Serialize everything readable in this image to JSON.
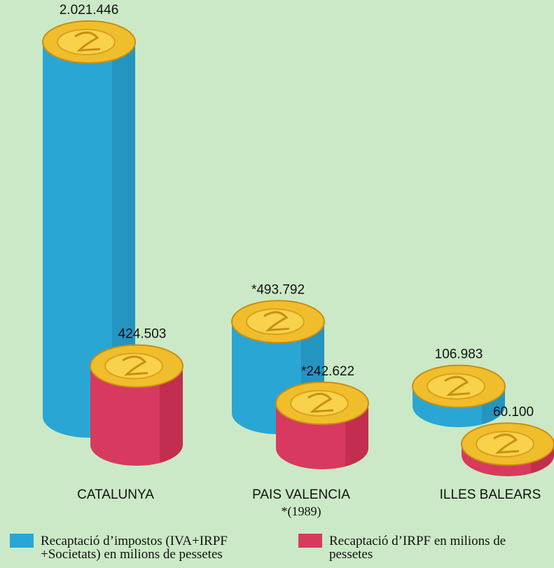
{
  "chart_data": {
    "type": "cylinder-bar",
    "categories": [
      "CATALUNYA",
      "PAIS VALENCIA",
      "ILLES BALEARS"
    ],
    "footnote": "*(1989)",
    "series": [
      {
        "name": "Recaptació d’impostos (IVA+IRPF +Societats) en milions de pessetes",
        "color": "#2aa6d4",
        "values": [
          2021446,
          493792,
          106983
        ],
        "value_labels": [
          "2.021.446",
          "*493.792",
          "106.983"
        ]
      },
      {
        "name": "Recaptació d’IRPF en milions de pessetes",
        "color": "#d8395e",
        "values": [
          424503,
          242622,
          60100
        ],
        "value_labels": [
          "424.503",
          "*242.622",
          "60.100"
        ]
      }
    ]
  }
}
